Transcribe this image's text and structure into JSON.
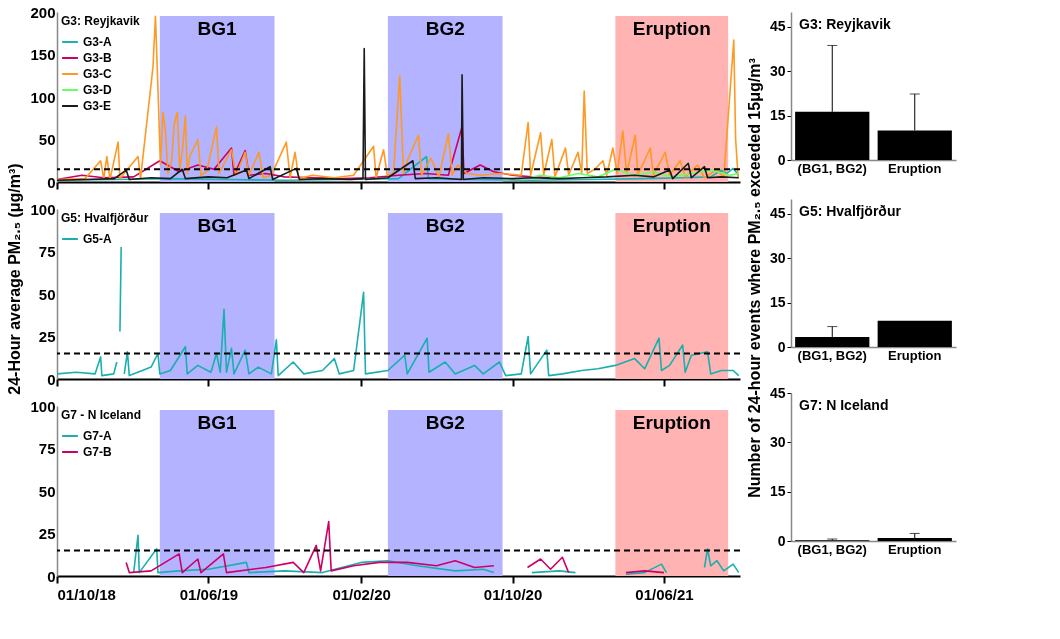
{
  "chart_data": [
    {
      "type": "line",
      "legend_title": "G3: Reyjkavik",
      "legend": "top left",
      "tick_labels": "y",
      "xlim": [
        "2018-10-01",
        "2021-10-01"
      ],
      "xticks": [
        {
          "value": "2018-10-01",
          "label": null
        },
        {
          "value": "2019-06-01",
          "label": null
        },
        {
          "value": "2020-02-01",
          "label": null
        },
        {
          "value": "2020-10-01",
          "label": null
        },
        {
          "value": "2021-06-01",
          "label": null
        }
      ],
      "ylim": [
        0,
        200
      ],
      "yticks": [
        0,
        50,
        100,
        150,
        200
      ],
      "bands": [
        {
          "axis": "x",
          "from": "2019-03-15",
          "to": "2019-09-15",
          "label": "BG1",
          "color": "#b3b3ff"
        },
        {
          "axis": "x",
          "from": "2020-03-15",
          "to": "2020-09-15",
          "label": "BG2",
          "color": "#b3b3ff"
        },
        {
          "axis": "x",
          "from": "2021-03-15",
          "to": "2021-09-12",
          "label": "Eruption",
          "color": "#ffb3b3"
        }
      ],
      "ref_lines": [
        {
          "axis": "y",
          "value": 15,
          "color": "#000000",
          "line_style": "dashed"
        }
      ],
      "series": [
        {
          "name": "G3-A",
          "color": "#1ab2b2",
          "x": [
            "2018-10-01",
            "2019-01-01",
            "2019-04-01",
            "2019-07-01",
            "2019-10-01",
            "2020-01-01",
            "2020-04-01",
            "2020-05-16",
            "2020-05-19",
            "2020-08-01",
            "2020-11-01",
            "2021-02-01",
            "2021-05-01",
            "2021-07-01",
            "2021-08-15",
            "2021-09-01",
            "2021-09-10",
            "2021-09-20",
            "2021-09-29"
          ],
          "values": [
            2,
            3,
            4,
            3,
            2,
            3,
            4,
            30,
            4,
            3,
            2,
            3,
            4,
            5,
            6,
            14,
            10,
            16,
            8
          ]
        },
        {
          "name": "G3-B",
          "color": "#cc0066",
          "x": [
            "2018-10-01",
            "2018-11-10",
            "2018-12-15",
            "2019-02-01",
            "2019-03-15",
            "2019-04-15",
            "2019-05-15",
            "2019-06-10",
            "2019-07-08",
            "2019-07-12",
            "2019-07-30",
            "2019-08-05",
            "2019-09-01",
            "2019-10-01",
            "2019-11-15",
            "2020-01-01",
            "2020-02-15",
            "2020-04-01",
            "2020-05-15",
            "2020-06-20",
            "2020-07-12",
            "2020-07-15",
            "2020-08-10",
            "2020-09-01",
            "2020-10-01",
            "2020-11-01",
            "2020-12-01"
          ],
          "values": [
            3,
            8,
            5,
            6,
            25,
            12,
            20,
            15,
            40,
            8,
            37,
            8,
            10,
            6,
            5,
            4,
            5,
            8,
            10,
            8,
            65,
            10,
            20,
            12,
            8,
            6,
            5
          ]
        },
        {
          "name": "G3-C",
          "color": "#ff9922",
          "x": [
            "2018-10-01",
            "2018-11-15",
            "2018-12-10",
            "2018-12-15",
            "2018-12-20",
            "2018-12-25",
            "2019-01-07",
            "2019-01-10",
            "2019-02-08",
            "2019-02-12",
            "2019-03-04",
            "2019-03-08",
            "2019-03-12",
            "2019-03-16",
            "2019-03-20",
            "2019-03-24",
            "2019-03-28",
            "2019-04-03",
            "2019-04-07",
            "2019-04-12",
            "2019-04-16",
            "2019-04-20",
            "2019-04-25",
            "2019-04-28",
            "2019-05-02",
            "2019-05-15",
            "2019-05-20",
            "2019-05-29",
            "2019-06-14",
            "2019-06-18",
            "2019-06-25",
            "2019-07-08",
            "2019-07-15",
            "2019-07-30",
            "2019-08-05",
            "2019-08-21",
            "2019-08-28",
            "2019-09-10",
            "2019-10-04",
            "2019-10-10",
            "2019-10-18",
            "2019-10-24",
            "2019-11-15",
            "2019-12-20",
            "2020-01-20",
            "2020-02-21",
            "2020-02-25",
            "2020-03-08",
            "2020-03-14",
            "2020-03-24",
            "2020-04-03",
            "2020-04-09",
            "2020-04-15",
            "2020-05-03",
            "2020-05-08",
            "2020-05-23",
            "2020-06-05",
            "2020-06-20",
            "2020-06-26",
            "2020-07-05",
            "2020-07-20",
            "2020-08-10",
            "2020-09-10",
            "2020-10-15",
            "2020-10-26",
            "2020-10-30",
            "2020-11-15",
            "2020-11-20",
            "2020-12-03",
            "2020-12-08",
            "2020-12-25",
            "2020-12-30",
            "2021-01-14",
            "2021-01-20",
            "2021-01-24",
            "2021-01-29",
            "2021-02-10",
            "2021-02-23",
            "2021-03-01",
            "2021-03-11",
            "2021-03-18",
            "2021-03-27",
            "2021-04-02",
            "2021-04-16",
            "2021-04-20",
            "2021-05-10",
            "2021-05-15",
            "2021-06-03",
            "2021-06-10",
            "2021-06-27",
            "2021-07-05",
            "2021-07-25",
            "2021-08-05",
            "2021-08-25",
            "2021-09-05",
            "2021-09-21",
            "2021-09-24",
            "2021-09-28"
          ],
          "values": [
            3,
            4,
            25,
            4,
            30,
            3,
            47,
            4,
            30,
            4,
            135,
            195,
            110,
            20,
            82,
            60,
            10,
            25,
            68,
            82,
            15,
            35,
            78,
            10,
            30,
            50,
            8,
            12,
            65,
            10,
            20,
            38,
            8,
            35,
            8,
            35,
            5,
            8,
            47,
            5,
            35,
            4,
            8,
            5,
            8,
            42,
            5,
            38,
            8,
            10,
            125,
            10,
            25,
            55,
            8,
            28,
            6,
            57,
            8,
            20,
            10,
            8,
            10,
            8,
            70,
            8,
            58,
            8,
            50,
            6,
            40,
            8,
            35,
            10,
            107,
            10,
            15,
            25,
            8,
            40,
            10,
            60,
            10,
            55,
            8,
            40,
            8,
            35,
            8,
            25,
            6,
            20,
            5,
            15,
            5,
            167,
            50,
            5
          ]
        },
        {
          "name": "G3-D",
          "color": "#66ff66",
          "x": [
            "2020-10-15",
            "2020-11-15",
            "2020-12-15",
            "2021-01-15",
            "2021-02-15",
            "2021-03-15",
            "2021-04-15",
            "2021-05-15",
            "2021-06-15",
            "2021-07-15",
            "2021-08-15",
            "2021-09-15",
            "2021-09-29"
          ],
          "values": [
            3,
            8,
            5,
            10,
            6,
            15,
            8,
            12,
            6,
            10,
            14,
            8,
            10
          ]
        },
        {
          "name": "G3-E",
          "color": "#1a1a1a",
          "x": [
            "2018-10-01",
            "2018-11-15",
            "2019-01-01",
            "2019-01-20",
            "2019-01-25",
            "2019-03-01",
            "2019-04-01",
            "2019-04-20",
            "2019-04-25",
            "2019-06-01",
            "2019-07-01",
            "2019-08-01",
            "2019-08-05",
            "2019-09-08",
            "2019-09-12",
            "2019-10-20",
            "2019-10-25",
            "2019-12-01",
            "2020-01-15",
            "2020-02-04",
            "2020-02-06",
            "2020-02-08",
            "2020-03-15",
            "2020-04-24",
            "2020-04-28",
            "2020-06-01",
            "2020-07-11",
            "2020-07-12",
            "2020-07-14",
            "2020-08-15",
            "2020-10-01",
            "2020-11-01",
            "2020-12-15",
            "2021-01-20",
            "2021-03-01",
            "2021-04-15",
            "2021-05-15",
            "2021-06-10",
            "2021-06-15",
            "2021-07-10",
            "2021-07-15",
            "2021-08-05",
            "2021-08-10",
            "2021-09-01",
            "2021-09-29"
          ],
          "values": [
            2,
            3,
            4,
            14,
            3,
            5,
            4,
            15,
            4,
            6,
            5,
            14,
            4,
            18,
            3,
            16,
            3,
            4,
            3,
            4,
            157,
            3,
            5,
            25,
            4,
            5,
            3,
            126,
            3,
            5,
            4,
            5,
            4,
            5,
            6,
            8,
            6,
            14,
            4,
            22,
            5,
            18,
            5,
            6,
            5
          ]
        }
      ]
    },
    {
      "type": "line",
      "legend_title": "G5: Hvalfjörður",
      "legend": "top left",
      "tick_labels": "y",
      "ylabel": "24-Hour average PM₂.₅ (μg/m³)",
      "xlim": [
        "2018-10-01",
        "2021-10-01"
      ],
      "xticks": [
        {
          "value": "2018-10-01",
          "label": null
        },
        {
          "value": "2019-06-01",
          "label": null
        },
        {
          "value": "2020-02-01",
          "label": null
        },
        {
          "value": "2020-10-01",
          "label": null
        },
        {
          "value": "2021-06-01",
          "label": null
        }
      ],
      "ylim": [
        0,
        100
      ],
      "yticks": [
        0,
        25,
        50,
        75,
        100
      ],
      "bands": [
        {
          "axis": "x",
          "from": "2019-03-15",
          "to": "2019-09-15",
          "label": "BG1",
          "color": "#b3b3ff"
        },
        {
          "axis": "x",
          "from": "2020-03-15",
          "to": "2020-09-15",
          "label": "BG2",
          "color": "#b3b3ff"
        },
        {
          "axis": "x",
          "from": "2021-03-15",
          "to": "2021-09-12",
          "label": "Eruption",
          "color": "#ffb3b3"
        }
      ],
      "ref_lines": [
        {
          "axis": "y",
          "value": 15,
          "color": "#000000",
          "line_style": "dashed"
        }
      ],
      "series": [
        {
          "name": "G5-A",
          "color": "#1aafaf",
          "x": [
            "2018-10-01",
            "2018-11-01",
            "2018-12-01",
            "2018-12-10",
            "2018-12-12",
            "2018-12-31",
            "2019-01-05",
            "2019-01-08",
            "2019-01-10",
            "2019-01-12",
            "2019-01-14",
            "2019-01-17",
            "2019-01-22",
            "2019-01-25",
            "2019-02-15",
            "2019-03-01",
            "2019-03-12",
            "2019-03-15",
            "2019-04-01",
            "2019-04-25",
            "2019-04-28",
            "2019-05-15",
            "2019-06-05",
            "2019-06-14",
            "2019-06-20",
            "2019-06-26",
            "2019-06-30",
            "2019-07-08",
            "2019-07-12",
            "2019-07-30",
            "2019-08-05",
            "2019-08-20",
            "2019-09-10",
            "2019-09-18",
            "2019-09-21",
            "2019-10-15",
            "2019-11-01",
            "2019-12-01",
            "2019-12-20",
            "2019-12-28",
            "2020-01-20",
            "2020-02-05",
            "2020-02-08",
            "2020-03-15",
            "2020-04-11",
            "2020-04-15",
            "2020-05-17",
            "2020-05-20",
            "2020-06-15",
            "2020-07-01",
            "2020-08-01",
            "2020-08-15",
            "2020-09-10",
            "2020-09-20",
            "2020-10-15",
            "2020-10-26",
            "2020-10-30",
            "2020-11-25",
            "2020-11-28",
            "2020-12-20",
            "2021-01-20",
            "2021-02-15",
            "2021-03-15",
            "2021-04-15",
            "2021-05-01",
            "2021-05-24",
            "2021-05-28",
            "2021-06-10",
            "2021-07-01",
            "2021-07-05",
            "2021-07-15",
            "2021-08-10",
            "2021-08-15",
            "2021-09-01",
            "2021-09-20",
            "2021-09-29"
          ],
          "values": [
            3,
            4,
            3,
            13,
            2,
            3,
            10,
            null,
            28,
            78,
            null,
            3,
            16,
            2,
            5,
            7,
            15,
            3,
            5,
            19,
            3,
            8,
            4,
            15,
            4,
            41,
            4,
            18,
            3,
            17,
            3,
            7,
            3,
            23,
            2,
            10,
            3,
            5,
            12,
            3,
            5,
            51,
            3,
            5,
            14,
            3,
            24,
            4,
            10,
            3,
            8,
            3,
            10,
            2,
            3,
            25,
            3,
            17,
            2,
            3,
            5,
            6,
            8,
            12,
            6,
            24,
            5,
            8,
            20,
            4,
            14,
            16,
            3,
            5,
            5,
            2
          ]
        }
      ]
    },
    {
      "type": "line",
      "legend_title": "G7 - N Iceland",
      "legend": "top left",
      "xlim": [
        "2018-10-01",
        "2021-10-01"
      ],
      "xticks": [
        {
          "value": "2018-10-01",
          "label": "01/10/18"
        },
        {
          "value": "2019-06-01",
          "label": "01/06/19"
        },
        {
          "value": "2020-02-01",
          "label": "01/02/20"
        },
        {
          "value": "2020-10-01",
          "label": "01/10/20"
        },
        {
          "value": "2021-06-01",
          "label": "01/06/21"
        }
      ],
      "ylim": [
        0,
        100
      ],
      "yticks": [
        0,
        25,
        50,
        75,
        100
      ],
      "bands": [
        {
          "axis": "x",
          "from": "2019-03-15",
          "to": "2019-09-15",
          "label": "BG1",
          "color": "#b3b3ff"
        },
        {
          "axis": "x",
          "from": "2020-03-15",
          "to": "2020-09-15",
          "label": "BG2",
          "color": "#b3b3ff"
        },
        {
          "axis": "x",
          "from": "2021-03-15",
          "to": "2021-09-12",
          "label": "Eruption",
          "color": "#ffb3b3"
        }
      ],
      "ref_lines": [
        {
          "axis": "y",
          "value": 15,
          "color": "#000000",
          "line_style": "dashed"
        }
      ],
      "series": [
        {
          "name": "G7-A",
          "color": "#1aafaf",
          "x": [
            "2019-02-01",
            "2019-02-08",
            "2019-02-10",
            "2019-03-10",
            "2019-03-12",
            "2019-04-15",
            "2019-06-01",
            "2019-08-01",
            "2019-08-05",
            "2019-10-01",
            "2019-12-01",
            "2020-02-01",
            "2020-03-15",
            "2020-05-01",
            "2020-07-01",
            "2020-08-15",
            "2020-09-01",
            "2020-10-01",
            "2020-11-01",
            "2020-12-15",
            "2021-01-10",
            "2021-02-15",
            "2021-04-01",
            "2021-05-01",
            "2021-05-28",
            "2021-06-05",
            "2021-07-01",
            "2021-08-05",
            "2021-08-10",
            "2021-08-15",
            "2021-08-25",
            "2021-09-05",
            "2021-09-20",
            "2021-09-29"
          ],
          "values": [
            2,
            24,
            2,
            16,
            2,
            3,
            4,
            8,
            2,
            3,
            2,
            8,
            9,
            6,
            3,
            4,
            2,
            null,
            2,
            3,
            2,
            null,
            1,
            2,
            7,
            2,
            null,
            5,
            16,
            6,
            9,
            3,
            7,
            2
          ]
        },
        {
          "name": "G7-B",
          "color": "#cc0066",
          "x": [
            "2019-01-20",
            "2019-01-25",
            "2019-03-01",
            "2019-04-15",
            "2019-04-20",
            "2019-05-15",
            "2019-05-20",
            "2019-06-25",
            "2019-06-30",
            "2019-09-01",
            "2019-10-15",
            "2019-11-01",
            "2019-11-21",
            "2019-11-28",
            "2019-12-11",
            "2019-12-15",
            "2020-01-20",
            "2020-03-01",
            "2020-04-15",
            "2020-06-01",
            "2020-07-01",
            "2020-08-01",
            "2020-09-01",
            "2020-10-01",
            "2020-10-25",
            "2020-11-15",
            "2020-12-01",
            "2020-12-20",
            "2020-12-30",
            "2021-02-01",
            "2021-04-01",
            "2021-05-01",
            "2021-06-01"
          ],
          "values": [
            8,
            2,
            3,
            13,
            2,
            10,
            2,
            13,
            2,
            5,
            8,
            2,
            18,
            3,
            32,
            3,
            6,
            8,
            8,
            6,
            9,
            5,
            6,
            null,
            5,
            10,
            4,
            11,
            2,
            null,
            2,
            3,
            2
          ]
        }
      ]
    },
    {
      "type": "bar",
      "title": "G3: Reyjkavik",
      "categories": [
        "(BG1, BG2)",
        "Eruption"
      ],
      "values": [
        16.3,
        10
      ],
      "errors": [
        [
          16.3,
          38.7
        ],
        [
          10,
          22.3
        ]
      ],
      "color": "#000000",
      "ylim": [
        0,
        50
      ],
      "yticks": [
        0,
        15,
        30,
        45
      ]
    },
    {
      "type": "bar",
      "title": "G5: Hvalfjörður",
      "categories": [
        "(BG1, BG2)",
        "Eruption"
      ],
      "values": [
        3.4,
        8.9
      ],
      "errors": [
        [
          3.4,
          6.9
        ],
        null
      ],
      "color": "#000000",
      "ylim": [
        0,
        50
      ],
      "yticks": [
        0,
        15,
        30,
        45
      ],
      "ylabel": "Number of 24-hour events where PM₂.₅ exceeded 15μg/m³"
    },
    {
      "type": "bar",
      "title": "G7: N Iceland",
      "categories": [
        "(BG1, BG2)",
        "Eruption"
      ],
      "values": [
        0.2,
        0.9
      ],
      "errors": [
        [
          0.2,
          0.6
        ],
        [
          0.9,
          2.3
        ]
      ],
      "color": "#000000",
      "ylim": [
        0,
        45
      ],
      "yticks": [
        0,
        15,
        30,
        45
      ]
    }
  ]
}
